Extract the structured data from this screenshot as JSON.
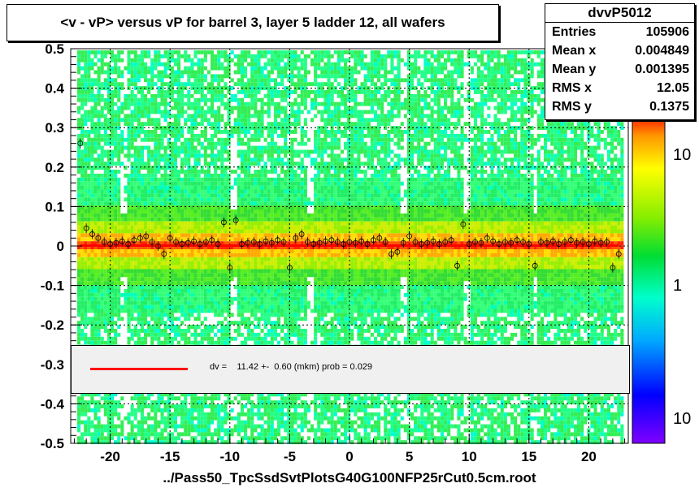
{
  "title": "<v - vP>       versus   vP for barrel 3, layer 5 ladder 12, all wafers",
  "stats": {
    "name": "dvvP5012",
    "rows": [
      {
        "label": "Entries",
        "value": "105906"
      },
      {
        "label": "Mean x",
        "value": "0.004849"
      },
      {
        "label": "Mean y",
        "value": "0.001395"
      },
      {
        "label": "RMS x",
        "value": "12.05"
      },
      {
        "label": "RMS y",
        "value": "0.1375"
      }
    ]
  },
  "legend": {
    "text": "dv =    11.42 +-  0.60 (mkm) prob = 0.029",
    "color": "#ff0000"
  },
  "footer": "../Pass50_TpcSsdSvtPlotsG40G100NFP25rCut0.5cm.root",
  "chart_data": {
    "type": "heatmap",
    "xlim": [
      -23.3,
      23.3
    ],
    "ylim": [
      -0.5,
      0.5
    ],
    "x_ticks": [
      -20,
      -15,
      -10,
      -5,
      0,
      5,
      10,
      15,
      20
    ],
    "y_ticks": [
      -0.5,
      -0.4,
      -0.3,
      -0.2,
      -0.1,
      0,
      0.1,
      0.2,
      0.3,
      0.4,
      0.5
    ],
    "grid": true,
    "colorbar": {
      "scale": "log",
      "tick_labels": [
        "10",
        "1",
        "10"
      ]
    },
    "fit_line": {
      "x": [
        -22.5,
        22.5
      ],
      "y": [
        0.0011,
        0.0011
      ],
      "color": "#ff0000"
    },
    "profile_points": {
      "x": [
        -22.5,
        -22,
        -21.5,
        -21,
        -20.5,
        -20,
        -19.5,
        -19,
        -18.5,
        -18,
        -17.5,
        -17,
        -16.5,
        -16,
        -15.5,
        -15,
        -14.5,
        -14,
        -13.5,
        -13,
        -12.5,
        -12,
        -11.5,
        -11,
        -10.5,
        -10,
        -9.5,
        -9,
        -8.5,
        -8,
        -7.5,
        -7,
        -6.5,
        -6,
        -5.5,
        -5,
        -4.5,
        -4,
        -3.5,
        -3,
        -2.5,
        -2,
        -1.5,
        -1,
        -0.5,
        0,
        0.5,
        1,
        1.5,
        2,
        2.5,
        3,
        3.5,
        4,
        4.5,
        5,
        5.5,
        6,
        6.5,
        7,
        7.5,
        8,
        8.5,
        9,
        9.5,
        10,
        10.5,
        11,
        11.5,
        12,
        12.5,
        13,
        13.5,
        14,
        14.5,
        15,
        15.5,
        16,
        16.5,
        17,
        17.5,
        18,
        18.5,
        19,
        19.5,
        20,
        20.5,
        21,
        21.5,
        22,
        22.5
      ],
      "y": [
        0.26,
        0.045,
        0.03,
        0.02,
        0.01,
        0.005,
        0.008,
        0.012,
        0.005,
        0.015,
        0.02,
        0.025,
        0.01,
        0.0,
        -0.02,
        0.02,
        0.01,
        0.005,
        0.008,
        0.012,
        0.005,
        0.01,
        0.015,
        0.005,
        0.06,
        -0.055,
        0.065,
        0.005,
        0.008,
        0.01,
        0.005,
        0.012,
        0.008,
        0.015,
        0.01,
        -0.055,
        0.02,
        0.03,
        0.01,
        0.005,
        0.008,
        0.012,
        0.015,
        0.01,
        0.005,
        0.01,
        0.008,
        0.012,
        0.005,
        0.015,
        0.02,
        0.01,
        -0.02,
        -0.015,
        0.008,
        0.025,
        0.01,
        0.005,
        0.008,
        0.012,
        0.005,
        0.01,
        0.015,
        -0.05,
        0.055,
        0.005,
        0.01,
        0.008,
        0.02,
        0.012,
        0.005,
        0.01,
        0.008,
        0.015,
        0.01,
        0.005,
        -0.05,
        0.01,
        0.008,
        0.012,
        0.005,
        0.01,
        0.015,
        0.008,
        0.01,
        0.005,
        0.012,
        0.008,
        0.01,
        -0.055,
        -0.02
      ]
    }
  }
}
